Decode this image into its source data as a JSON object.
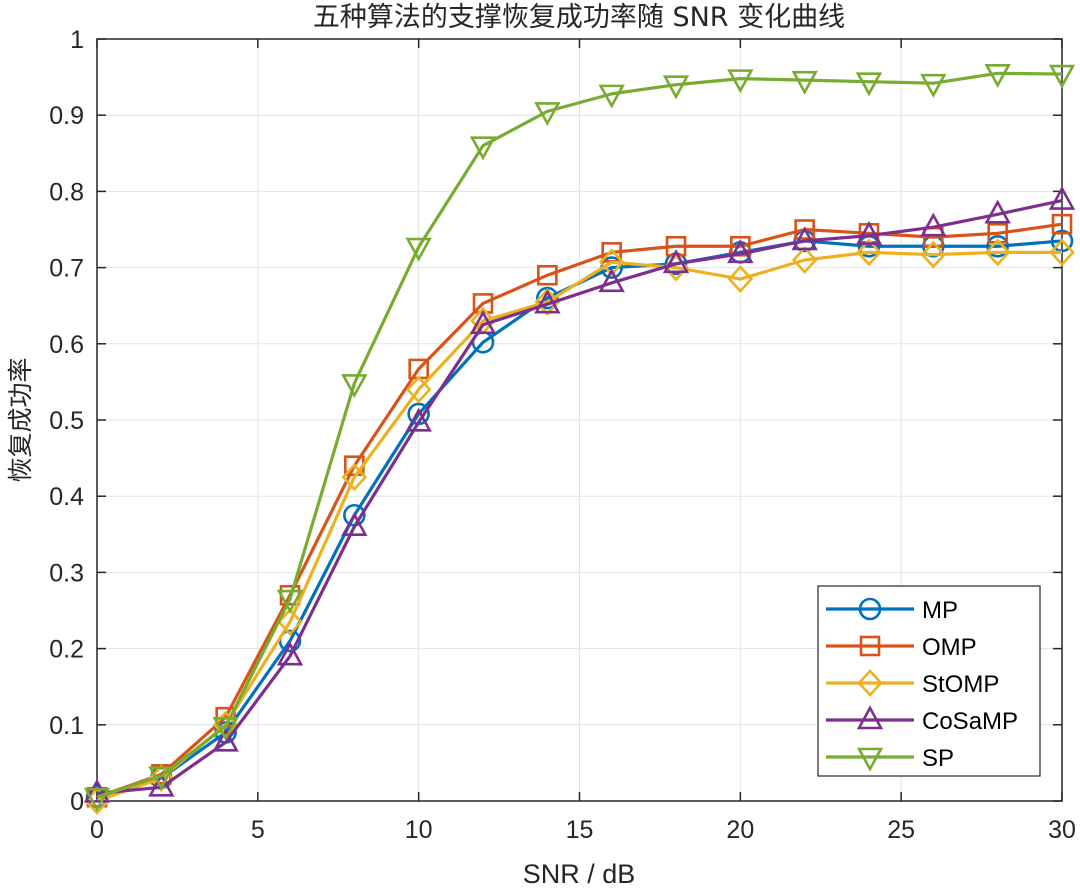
{
  "chart_data": {
    "type": "line",
    "title": "五种算法的支撑恢复成功率随 SNR 变化曲线",
    "xlabel": "SNR / dB",
    "ylabel": "恢复成功率",
    "xlim": [
      0,
      30
    ],
    "ylim": [
      0,
      1
    ],
    "xticks": [
      0,
      5,
      10,
      15,
      20,
      25,
      30
    ],
    "yticks": [
      0,
      0.1,
      0.2,
      0.3,
      0.4,
      0.5,
      0.6,
      0.7,
      0.8,
      0.9,
      1
    ],
    "ytick_labels": [
      "0",
      "0.1",
      "0.2",
      "0.3",
      "0.4",
      "0.5",
      "0.6",
      "0.7",
      "0.8",
      "0.9",
      "1"
    ],
    "grid": true,
    "legend_position": "bottom-right",
    "x": [
      0,
      2,
      4,
      6,
      8,
      10,
      12,
      14,
      16,
      18,
      20,
      22,
      24,
      26,
      28,
      30
    ],
    "series": [
      {
        "name": "MP",
        "color": "#0072BD",
        "marker": "circle",
        "values": [
          0.005,
          0.03,
          0.09,
          0.21,
          0.375,
          0.508,
          0.602,
          0.66,
          0.7,
          0.705,
          0.72,
          0.735,
          0.728,
          0.728,
          0.728,
          0.735
        ]
      },
      {
        "name": "OMP",
        "color": "#D95319",
        "marker": "square",
        "values": [
          0.005,
          0.035,
          0.11,
          0.27,
          0.44,
          0.567,
          0.653,
          0.69,
          0.72,
          0.728,
          0.728,
          0.75,
          0.745,
          0.74,
          0.745,
          0.757
        ]
      },
      {
        "name": "StOMP",
        "color": "#EDB120",
        "marker": "diamond",
        "values": [
          0.0,
          0.03,
          0.1,
          0.235,
          0.425,
          0.54,
          0.63,
          0.655,
          0.707,
          0.7,
          0.685,
          0.71,
          0.72,
          0.717,
          0.72,
          0.72
        ]
      },
      {
        "name": "CoSaMP",
        "color": "#7E2F8E",
        "marker": "triangle-up",
        "values": [
          0.01,
          0.018,
          0.077,
          0.19,
          0.36,
          0.497,
          0.625,
          0.652,
          0.68,
          0.705,
          0.718,
          0.735,
          0.742,
          0.753,
          0.77,
          0.788
        ]
      },
      {
        "name": "SP",
        "color": "#77AC30",
        "marker": "triangle-down",
        "values": [
          0.005,
          0.033,
          0.098,
          0.265,
          0.548,
          0.727,
          0.86,
          0.905,
          0.928,
          0.94,
          0.948,
          0.946,
          0.944,
          0.942,
          0.955,
          0.954
        ]
      }
    ]
  }
}
